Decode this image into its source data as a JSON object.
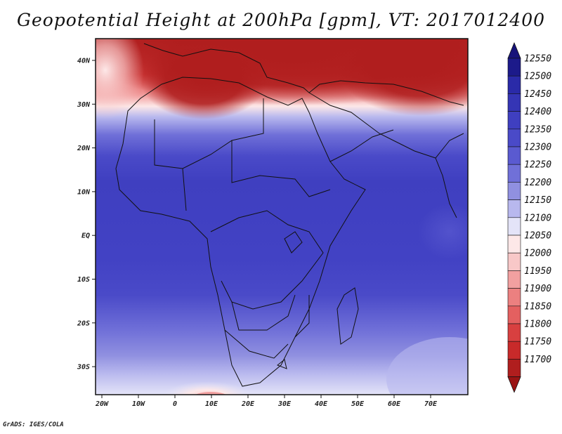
{
  "title": "Geopotential Height at 200hPa [gpm], VT: 2017012400",
  "credit": "GrADS: IGES/COLA",
  "map": {
    "lon_ticks": [
      "20W",
      "10W",
      "0",
      "10E",
      "20E",
      "30E",
      "40E",
      "50E",
      "60E",
      "70E"
    ],
    "lat_ticks": [
      "40N",
      "30N",
      "20N",
      "10N",
      "EQ",
      "10S",
      "20S",
      "30S"
    ]
  },
  "colorbar": {
    "levels": [
      "12550",
      "12500",
      "12450",
      "12400",
      "12350",
      "12300",
      "12250",
      "12200",
      "12150",
      "12100",
      "12050",
      "12000",
      "11950",
      "11900",
      "11850",
      "11800",
      "11750",
      "11700"
    ],
    "colors": [
      "#1c1a8a",
      "#2a2aa8",
      "#3535b5",
      "#3f3fc0",
      "#4a4ac8",
      "#5a5ad0",
      "#7070d8",
      "#9090e0",
      "#b8b8ee",
      "#e4e4f8",
      "#fde8e8",
      "#f8c8c8",
      "#f2a0a0",
      "#ec8080",
      "#e46060",
      "#d84040",
      "#c82a2a",
      "#b01e1e"
    ],
    "top_arrow_color": "#17137a",
    "bottom_arrow_color": "#9a1414"
  },
  "colors": {
    "tropics_blue": "#3f3fc0",
    "deep_red": "#b01e1e",
    "land_lines": "#111111"
  }
}
